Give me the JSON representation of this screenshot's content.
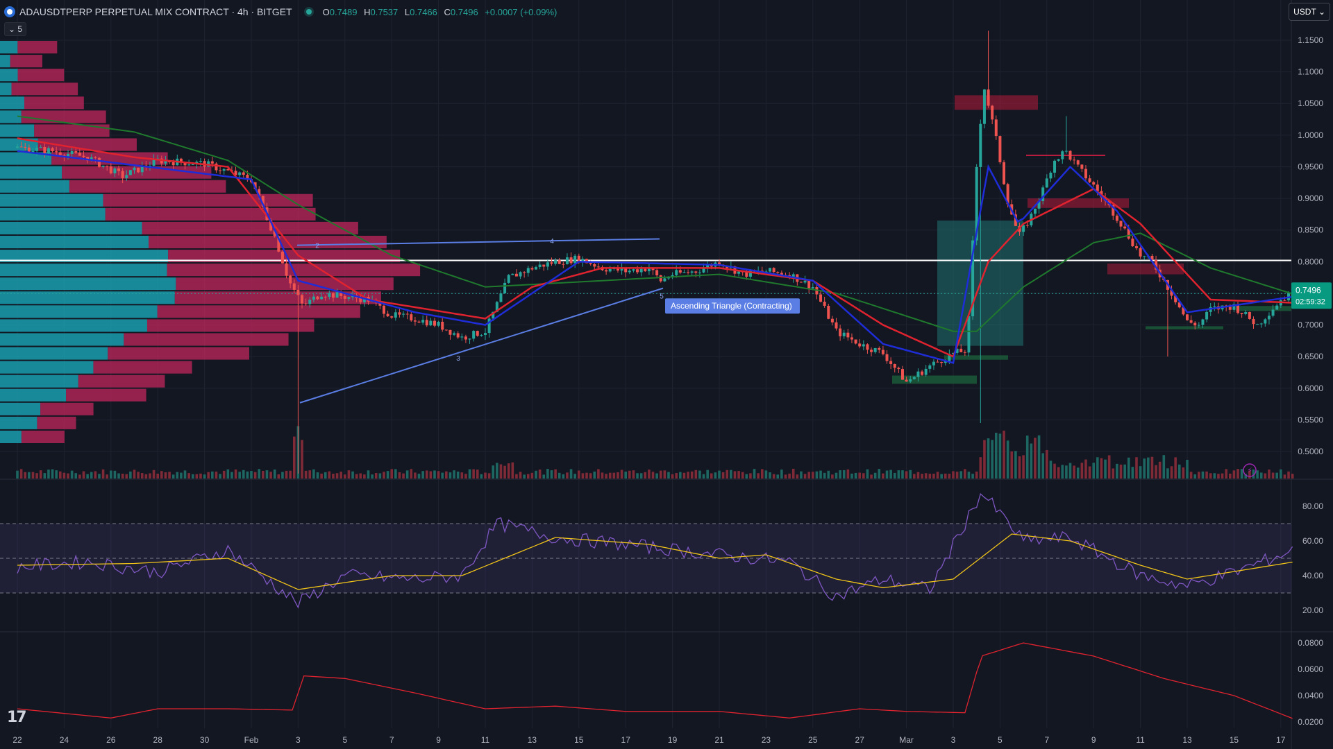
{
  "header": {
    "symbol_title": "ADAUSDTPERP PERPETUAL MIX CONTRACT · 4h · BITGET",
    "ohlc": {
      "o_label": "O",
      "o": "0.7489",
      "h_label": "H",
      "h": "0.7537",
      "l_label": "L",
      "l": "0.7466",
      "c_label": "C",
      "c": "0.7496",
      "change": "+0.0007 (+0.09%)"
    },
    "indicator_toggle": "5",
    "currency": "USDT"
  },
  "price_badge": {
    "price": "0.7496",
    "countdown": "02:59:32"
  },
  "pattern_label": "Ascending Triangle (Contracting)",
  "pattern_points": [
    "2",
    "4",
    "3",
    "5"
  ],
  "colors": {
    "up": "#26a69a",
    "down": "#ef5350",
    "ema_fast": "#1e2dd8",
    "ema_mid": "#e0232f",
    "ema_slow": "#1f7a2d",
    "rsi": "#7e57c2",
    "rsi_ma": "#f0c419",
    "atr": "#e0232f",
    "pattern": "#5b7ee5"
  },
  "chart_data": [
    {
      "type": "candlestick",
      "title": "ADAUSDTPERP PERPETUAL MIX CONTRACT · 4h · BITGET",
      "x_ticks": [
        "22",
        "24",
        "26",
        "28",
        "30",
        "Feb",
        "3",
        "5",
        "7",
        "9",
        "11",
        "13",
        "15",
        "17",
        "19",
        "21",
        "23",
        "25",
        "27",
        "Mar",
        "3",
        "5",
        "7",
        "9",
        "11",
        "13",
        "15",
        "17"
      ],
      "y_ticks": [
        "1.1500",
        "1.1000",
        "1.0500",
        "1.0000",
        "0.9500",
        "0.9000",
        "0.8500",
        "0.8000",
        "0.7500",
        "0.7000",
        "0.6500",
        "0.6000",
        "0.5500",
        "0.5000"
      ],
      "ylim": [
        0.465,
        1.175
      ],
      "anchors": [
        {
          "day": 0,
          "p": 0.98
        },
        {
          "day": 1.5,
          "p": 0.975
        },
        {
          "day": 3,
          "p": 0.965
        },
        {
          "day": 4.5,
          "p": 0.935
        },
        {
          "day": 6,
          "p": 0.96
        },
        {
          "day": 8,
          "p": 0.955
        },
        {
          "day": 10,
          "p": 0.93
        },
        {
          "day": 11,
          "p": 0.84
        },
        {
          "day": 11.6,
          "p": 0.77
        },
        {
          "day": 12.2,
          "p": 0.73
        },
        {
          "day": 13,
          "p": 0.75
        },
        {
          "day": 14,
          "p": 0.745
        },
        {
          "day": 15,
          "p": 0.74
        },
        {
          "day": 16,
          "p": 0.715
        },
        {
          "day": 17,
          "p": 0.71
        },
        {
          "day": 18,
          "p": 0.7
        },
        {
          "day": 19,
          "p": 0.68
        },
        {
          "day": 20,
          "p": 0.69
        },
        {
          "day": 21,
          "p": 0.775
        },
        {
          "day": 22,
          "p": 0.79
        },
        {
          "day": 23,
          "p": 0.8
        },
        {
          "day": 24,
          "p": 0.805
        },
        {
          "day": 25,
          "p": 0.79
        },
        {
          "day": 26,
          "p": 0.785
        },
        {
          "day": 27,
          "p": 0.79
        },
        {
          "day": 27.5,
          "p": 0.77
        },
        {
          "day": 28,
          "p": 0.78
        },
        {
          "day": 29,
          "p": 0.785
        },
        {
          "day": 30,
          "p": 0.8
        },
        {
          "day": 31,
          "p": 0.78
        },
        {
          "day": 32,
          "p": 0.785
        },
        {
          "day": 33,
          "p": 0.78
        },
        {
          "day": 34,
          "p": 0.76
        },
        {
          "day": 35,
          "p": 0.69
        },
        {
          "day": 36,
          "p": 0.67
        },
        {
          "day": 37,
          "p": 0.655
        },
        {
          "day": 38,
          "p": 0.61
        },
        {
          "day": 39,
          "p": 0.635
        },
        {
          "day": 40,
          "p": 0.655
        },
        {
          "day": 40.6,
          "p": 0.66
        },
        {
          "day": 41,
          "p": 0.95
        },
        {
          "day": 41.3,
          "p": 1.08
        },
        {
          "day": 41.8,
          "p": 1.0
        },
        {
          "day": 42.3,
          "p": 0.9
        },
        {
          "day": 42.8,
          "p": 0.84
        },
        {
          "day": 43.3,
          "p": 0.87
        },
        {
          "day": 43.8,
          "p": 0.91
        },
        {
          "day": 44.3,
          "p": 0.96
        },
        {
          "day": 44.8,
          "p": 0.975
        },
        {
          "day": 45.3,
          "p": 0.95
        },
        {
          "day": 46,
          "p": 0.92
        },
        {
          "day": 47,
          "p": 0.87
        },
        {
          "day": 48,
          "p": 0.81
        },
        {
          "day": 48.5,
          "p": 0.8
        },
        {
          "day": 49,
          "p": 0.77
        },
        {
          "day": 49.5,
          "p": 0.74
        },
        {
          "day": 50,
          "p": 0.705
        },
        {
          "day": 50.5,
          "p": 0.7
        },
        {
          "day": 51,
          "p": 0.725
        },
        {
          "day": 52,
          "p": 0.73
        },
        {
          "day": 53,
          "p": 0.7
        },
        {
          "day": 54,
          "p": 0.74
        },
        {
          "day": 54.6,
          "p": 0.75
        }
      ],
      "ema_fast": [
        {
          "day": 0,
          "p": 0.975
        },
        {
          "day": 10,
          "p": 0.93
        },
        {
          "day": 12,
          "p": 0.77
        },
        {
          "day": 17,
          "p": 0.72
        },
        {
          "day": 20,
          "p": 0.7
        },
        {
          "day": 24,
          "p": 0.8
        },
        {
          "day": 30,
          "p": 0.795
        },
        {
          "day": 34,
          "p": 0.77
        },
        {
          "day": 37,
          "p": 0.67
        },
        {
          "day": 40,
          "p": 0.64
        },
        {
          "day": 41.5,
          "p": 0.95
        },
        {
          "day": 42.8,
          "p": 0.86
        },
        {
          "day": 45,
          "p": 0.95
        },
        {
          "day": 47,
          "p": 0.88
        },
        {
          "day": 50,
          "p": 0.72
        },
        {
          "day": 54.6,
          "p": 0.745
        }
      ],
      "ema_mid": [
        {
          "day": 0,
          "p": 0.995
        },
        {
          "day": 5,
          "p": 0.965
        },
        {
          "day": 9,
          "p": 0.95
        },
        {
          "day": 12,
          "p": 0.81
        },
        {
          "day": 15,
          "p": 0.74
        },
        {
          "day": 20,
          "p": 0.71
        },
        {
          "day": 22,
          "p": 0.76
        },
        {
          "day": 25,
          "p": 0.79
        },
        {
          "day": 30,
          "p": 0.79
        },
        {
          "day": 34,
          "p": 0.77
        },
        {
          "day": 37,
          "p": 0.7
        },
        {
          "day": 40,
          "p": 0.65
        },
        {
          "day": 41.5,
          "p": 0.8
        },
        {
          "day": 43,
          "p": 0.86
        },
        {
          "day": 46,
          "p": 0.915
        },
        {
          "day": 48,
          "p": 0.86
        },
        {
          "day": 51,
          "p": 0.74
        },
        {
          "day": 54.6,
          "p": 0.735
        }
      ],
      "ema_slow": [
        {
          "day": 0,
          "p": 1.03
        },
        {
          "day": 5,
          "p": 1.005
        },
        {
          "day": 9,
          "p": 0.96
        },
        {
          "day": 12,
          "p": 0.89
        },
        {
          "day": 16,
          "p": 0.81
        },
        {
          "day": 20,
          "p": 0.76
        },
        {
          "day": 25,
          "p": 0.77
        },
        {
          "day": 30,
          "p": 0.78
        },
        {
          "day": 35,
          "p": 0.75
        },
        {
          "day": 40,
          "p": 0.69
        },
        {
          "day": 41,
          "p": 0.69
        },
        {
          "day": 43,
          "p": 0.76
        },
        {
          "day": 46,
          "p": 0.83
        },
        {
          "day": 48,
          "p": 0.845
        },
        {
          "day": 51,
          "p": 0.79
        },
        {
          "day": 54.6,
          "p": 0.748
        }
      ],
      "horizontal_line": 0.802,
      "last_price": 0.7496
    },
    {
      "type": "line",
      "title": "",
      "y_ticks": [
        "80.00",
        "60.00",
        "40.00",
        "20.00"
      ],
      "ylim": [
        12,
        93
      ],
      "bands": [
        70,
        50,
        30
      ],
      "rsi": [
        {
          "day": 0,
          "v": 45
        },
        {
          "day": 3,
          "v": 48
        },
        {
          "day": 6,
          "v": 42
        },
        {
          "day": 9,
          "v": 55
        },
        {
          "day": 12,
          "v": 24
        },
        {
          "day": 14,
          "v": 40
        },
        {
          "day": 17,
          "v": 38
        },
        {
          "day": 19,
          "v": 40
        },
        {
          "day": 20.5,
          "v": 70
        },
        {
          "day": 23,
          "v": 62
        },
        {
          "day": 26,
          "v": 58
        },
        {
          "day": 30,
          "v": 52
        },
        {
          "day": 33,
          "v": 48
        },
        {
          "day": 35,
          "v": 28
        },
        {
          "day": 37,
          "v": 38
        },
        {
          "day": 39,
          "v": 32
        },
        {
          "day": 41.2,
          "v": 88
        },
        {
          "day": 43,
          "v": 60
        },
        {
          "day": 45,
          "v": 62
        },
        {
          "day": 48,
          "v": 40
        },
        {
          "day": 50,
          "v": 34
        },
        {
          "day": 52,
          "v": 42
        },
        {
          "day": 54.6,
          "v": 55
        }
      ],
      "rsi_ma": [
        {
          "day": 0,
          "v": 46
        },
        {
          "day": 5,
          "v": 47
        },
        {
          "day": 9,
          "v": 50
        },
        {
          "day": 12,
          "v": 32
        },
        {
          "day": 16,
          "v": 40
        },
        {
          "day": 19,
          "v": 40
        },
        {
          "day": 23,
          "v": 62
        },
        {
          "day": 27,
          "v": 58
        },
        {
          "day": 30,
          "v": 50
        },
        {
          "day": 32,
          "v": 52
        },
        {
          "day": 35,
          "v": 38
        },
        {
          "day": 37,
          "v": 33
        },
        {
          "day": 40,
          "v": 38
        },
        {
          "day": 42.5,
          "v": 64
        },
        {
          "day": 45,
          "v": 60
        },
        {
          "day": 48,
          "v": 46
        },
        {
          "day": 50,
          "v": 38
        },
        {
          "day": 54.6,
          "v": 48
        }
      ]
    },
    {
      "type": "line",
      "title": "",
      "y_ticks": [
        "0.0800",
        "0.0600",
        "0.0400",
        "0.0200"
      ],
      "ylim": [
        0.017,
        0.083
      ],
      "atr": [
        {
          "day": 0,
          "v": 0.03
        },
        {
          "day": 4,
          "v": 0.023
        },
        {
          "day": 6,
          "v": 0.03
        },
        {
          "day": 9,
          "v": 0.03
        },
        {
          "day": 11.8,
          "v": 0.029
        },
        {
          "day": 12.2,
          "v": 0.055
        },
        {
          "day": 14,
          "v": 0.053
        },
        {
          "day": 17,
          "v": 0.042
        },
        {
          "day": 20,
          "v": 0.03
        },
        {
          "day": 23,
          "v": 0.032
        },
        {
          "day": 26,
          "v": 0.028
        },
        {
          "day": 30,
          "v": 0.028
        },
        {
          "day": 33,
          "v": 0.023
        },
        {
          "day": 36,
          "v": 0.03
        },
        {
          "day": 38,
          "v": 0.028
        },
        {
          "day": 40.5,
          "v": 0.027
        },
        {
          "day": 41.2,
          "v": 0.07
        },
        {
          "day": 43,
          "v": 0.08
        },
        {
          "day": 46,
          "v": 0.07
        },
        {
          "day": 49,
          "v": 0.053
        },
        {
          "day": 52,
          "v": 0.04
        },
        {
          "day": 54.6,
          "v": 0.022
        }
      ]
    }
  ]
}
